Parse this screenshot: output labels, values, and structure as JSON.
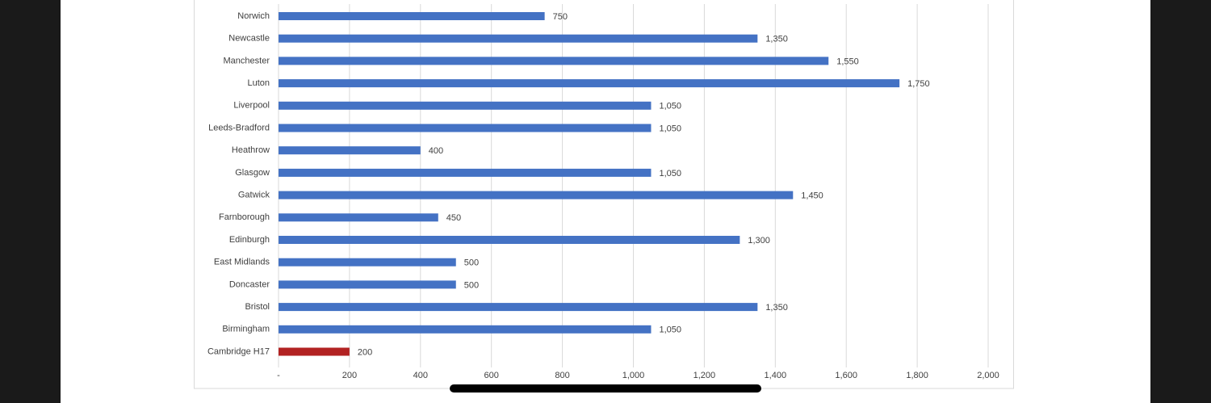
{
  "chart_data": {
    "type": "bar",
    "orientation": "horizontal",
    "categories": [
      "Norwich",
      "Newcastle",
      "Manchester",
      "Luton",
      "Liverpool",
      "Leeds-Bradford",
      "Heathrow",
      "Glasgow",
      "Gatwick",
      "Farnborough",
      "Edinburgh",
      "East Midlands",
      "Doncaster",
      "Bristol",
      "Birmingham",
      "Cambridge H17"
    ],
    "values": [
      750,
      1350,
      1550,
      1750,
      1050,
      1050,
      400,
      1050,
      1450,
      450,
      1300,
      500,
      500,
      1350,
      1050,
      200
    ],
    "value_labels": [
      "750",
      "1,350",
      "1,550",
      "1,750",
      "1,050",
      "1,050",
      "400",
      "1,050",
      "1,450",
      "450",
      "1,300",
      "500",
      "500",
      "1,350",
      "1,050",
      "200"
    ],
    "colors": [
      "#4472c4",
      "#4472c4",
      "#4472c4",
      "#4472c4",
      "#4472c4",
      "#4472c4",
      "#4472c4",
      "#4472c4",
      "#4472c4",
      "#4472c4",
      "#4472c4",
      "#4472c4",
      "#4472c4",
      "#4472c4",
      "#4472c4",
      "#b22222"
    ],
    "xlim": [
      0,
      2000
    ],
    "xticks": [
      {
        "value": 0,
        "label": "-"
      },
      200,
      400,
      600,
      800,
      {
        "value": 1000,
        "label": "1,000"
      },
      {
        "value": 1200,
        "label": "1,200"
      },
      {
        "value": 1400,
        "label": "1,400"
      },
      {
        "value": 1600,
        "label": "1,600"
      },
      {
        "value": 1800,
        "label": "1,800"
      },
      {
        "value": 2000,
        "label": "2,000"
      }
    ],
    "grid": true
  }
}
